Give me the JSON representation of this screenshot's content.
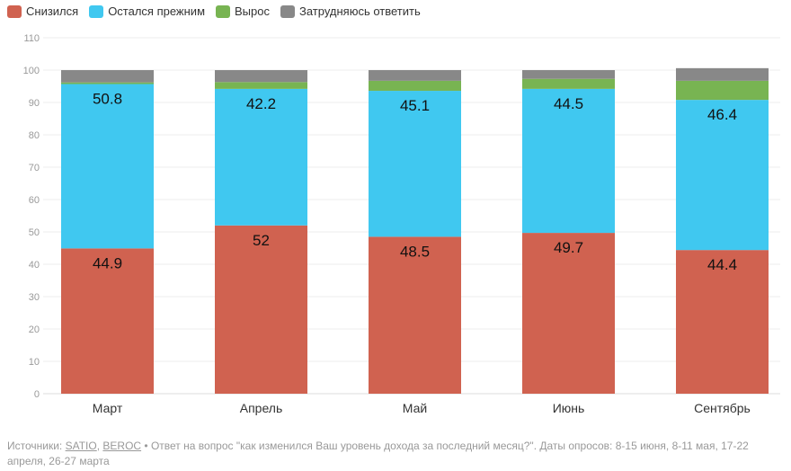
{
  "chart_data": {
    "type": "bar",
    "stacked": true,
    "categories": [
      "Март",
      "Апрель",
      "Май",
      "Июнь",
      "Сентябрь"
    ],
    "series": [
      {
        "name": "Снизился",
        "color": "#d06250",
        "values": [
          44.9,
          52,
          48.5,
          49.7,
          44.4
        ],
        "labels": true
      },
      {
        "name": "Остался прежним",
        "color": "#40c8f0",
        "values": [
          50.8,
          42.2,
          45.1,
          44.5,
          46.4
        ],
        "labels": true
      },
      {
        "name": "Вырос",
        "color": "#78b452",
        "values": [
          0.5,
          2.1,
          3.1,
          3.1,
          5.9
        ],
        "labels": false
      },
      {
        "name": "Затрудняюсь ответить",
        "color": "#888888",
        "values": [
          3.8,
          3.7,
          3.3,
          2.7,
          3.9
        ],
        "labels": false
      }
    ],
    "ylim": [
      0,
      110
    ],
    "yticks": [
      0,
      10,
      20,
      30,
      40,
      50,
      60,
      70,
      80,
      90,
      100,
      110
    ],
    "grid": true,
    "legend": "top-left"
  },
  "footer": {
    "prefix": "Источники: ",
    "source1": "SATIO",
    "sep": ", ",
    "source2": "BEROC",
    "text": " • Ответ на вопрос \"как изменился Ваш уровень дохода за последний месяц?\". Даты опросов: 8-15 июня, 8-11 мая, 17-22 апреля, 26-27 марта"
  }
}
